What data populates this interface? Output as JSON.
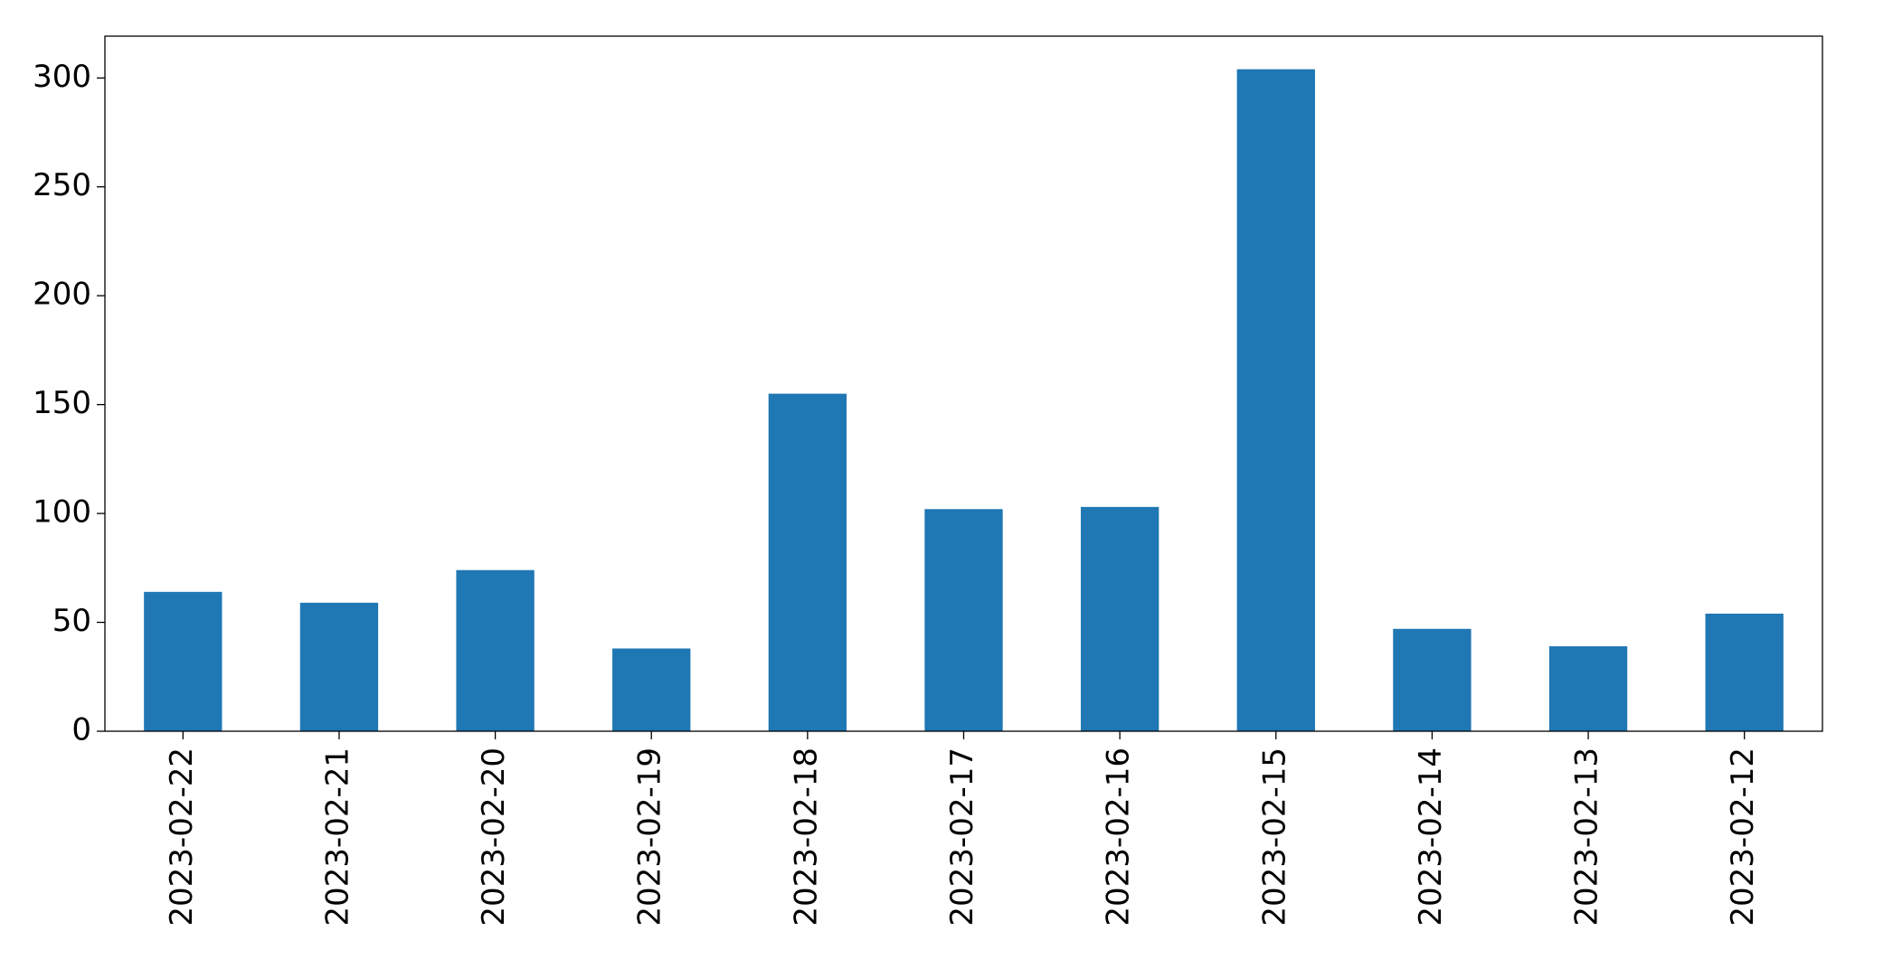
{
  "chart_data": {
    "type": "bar",
    "categories": [
      "2023-02-22",
      "2023-02-21",
      "2023-02-20",
      "2023-02-19",
      "2023-02-18",
      "2023-02-17",
      "2023-02-16",
      "2023-02-15",
      "2023-02-14",
      "2023-02-13",
      "2023-02-12"
    ],
    "values": [
      64,
      59,
      74,
      38,
      155,
      102,
      103,
      304,
      47,
      39,
      54
    ],
    "color": "#1f77b4",
    "ylim": [
      0,
      319.2
    ],
    "yticks": [
      0,
      50,
      100,
      150,
      200,
      250,
      300
    ],
    "grid": false
  }
}
